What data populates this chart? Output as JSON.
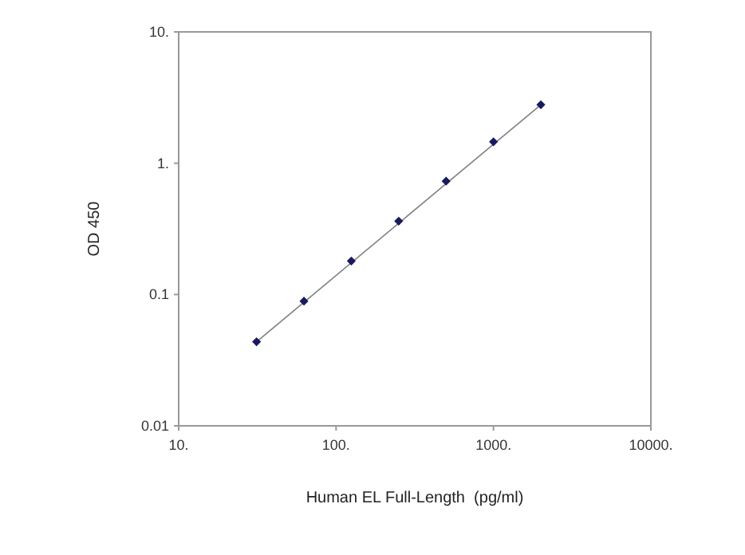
{
  "chart_data": {
    "type": "scatter",
    "xlabel": "Human EL Full-Length  (pg/ml)",
    "ylabel": "OD 450",
    "log": "xy",
    "grid": false,
    "marker": "diamond",
    "xlim": [
      10,
      10000
    ],
    "xticks": [
      {
        "value": 10,
        "label": "10."
      },
      {
        "value": 100,
        "label": "100."
      },
      {
        "value": 1000,
        "label": "1000."
      },
      {
        "value": 10000,
        "label": "10000."
      }
    ],
    "ylim": [
      0.01,
      10
    ],
    "yticks": [
      {
        "value": 0.01,
        "label": "0.01"
      },
      {
        "value": 0.1,
        "label": "0.1"
      },
      {
        "value": 1,
        "label": "1."
      },
      {
        "value": 10,
        "label": "10."
      }
    ],
    "series": [
      {
        "type": "line",
        "color": "#808080",
        "marker": "none",
        "line_style": "solid",
        "x": [
          31.25,
          2000
        ],
        "values": [
          0.0437,
          2.79
        ]
      },
      {
        "color": "#1a1a5e",
        "x": [
          31.25,
          62.5,
          125,
          250,
          500,
          1000,
          2000
        ],
        "values": [
          0.0437,
          0.089,
          0.18,
          0.362,
          0.73,
          1.455,
          2.79
        ]
      }
    ]
  }
}
